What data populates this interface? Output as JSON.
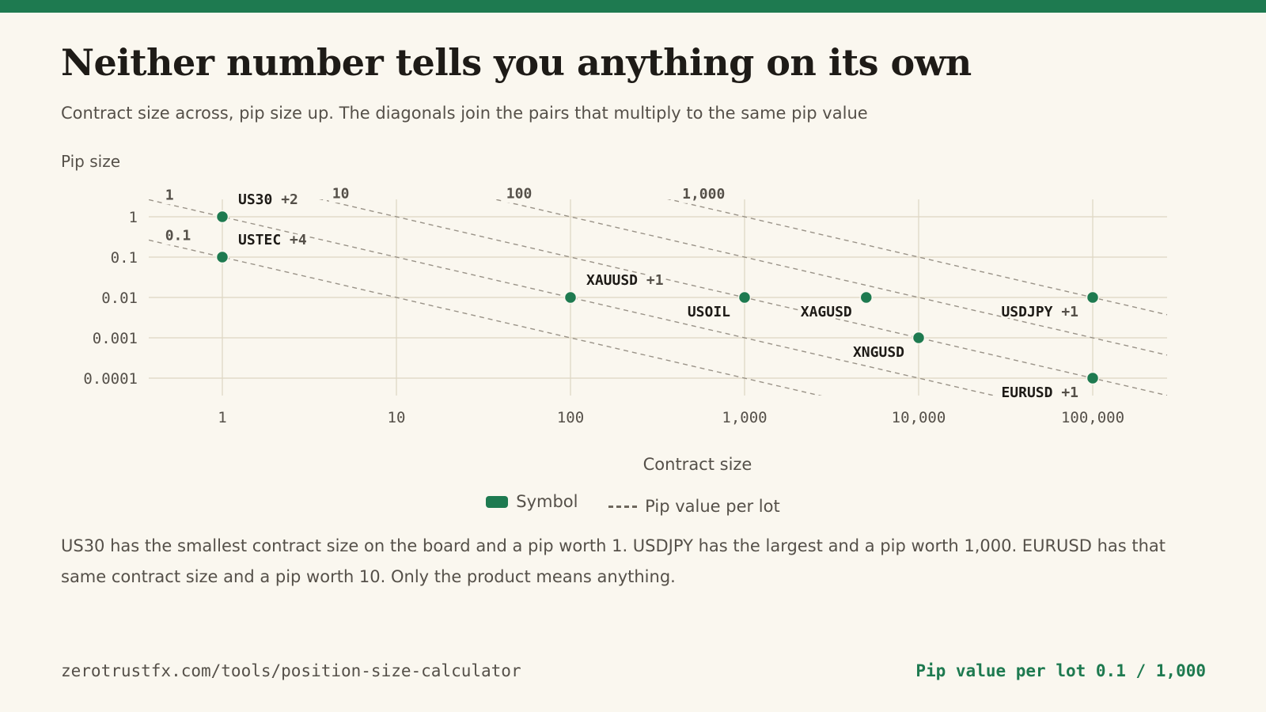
{
  "header": {
    "title": "Neither number tells you anything on its own",
    "subtitle": "Contract size across, pip size up. The diagonals join the pairs that multiply to the same pip value"
  },
  "legend": {
    "symbol": "Symbol",
    "pip_value": "Pip value per lot"
  },
  "note": "US30 has the smallest contract size on the board and a pip worth 1. USDJPY has the largest and a pip worth 1,000. EURUSD has that same contract size and a pip worth 10. Only the product means anything.",
  "footer": {
    "url": "zerotrustfx.com/tools/position-size-calculator",
    "right": "Pip value per lot 0.1 / 1,000"
  },
  "colors": {
    "accent": "#1e7a50",
    "background": "#faf7ef",
    "grid": "#ddd6c2",
    "diagonal": "#9a9388"
  },
  "chart_data": {
    "type": "scatter",
    "xlabel": "Contract size",
    "ylabel": "Pip size",
    "x_scale": "log",
    "y_scale": "log",
    "xlim": [
      0.4,
      250000
    ],
    "ylim": [
      5e-05,
      2
    ],
    "x_ticks": [
      1,
      10,
      100,
      1000,
      10000,
      100000
    ],
    "x_tick_labels": [
      "1",
      "10",
      "100",
      "1,000",
      "10,000",
      "100,000"
    ],
    "y_ticks": [
      1,
      0.1,
      0.01,
      0.001,
      0.0001
    ],
    "y_tick_labels": [
      "1",
      "0.1",
      "0.01",
      "0.001",
      "0.0001"
    ],
    "grid": true,
    "series": [
      {
        "name": "Symbol",
        "points": [
          {
            "label": "US30",
            "extra": "+2",
            "x": 1,
            "y": 1
          },
          {
            "label": "USTEC",
            "extra": "+4",
            "x": 1,
            "y": 0.1
          },
          {
            "label": "XAUUSD",
            "extra": "+1",
            "x": 100,
            "y": 0.01
          },
          {
            "label": "USOIL",
            "extra": "",
            "x": 1000,
            "y": 0.01
          },
          {
            "label": "XAGUSD",
            "extra": "",
            "x": 5000,
            "y": 0.01
          },
          {
            "label": "XNGUSD",
            "extra": "",
            "x": 10000,
            "y": 0.001
          },
          {
            "label": "USDJPY",
            "extra": "+1",
            "x": 100000,
            "y": 0.01
          },
          {
            "label": "EURUSD",
            "extra": "+1",
            "x": 100000,
            "y": 0.0001
          }
        ]
      }
    ],
    "pip_value_lines": [
      {
        "value": 0.1,
        "label": "0.1"
      },
      {
        "value": 1,
        "label": "1"
      },
      {
        "value": 10,
        "label": "10"
      },
      {
        "value": 100,
        "label": "100"
      },
      {
        "value": 1000,
        "label": "1,000"
      }
    ]
  }
}
